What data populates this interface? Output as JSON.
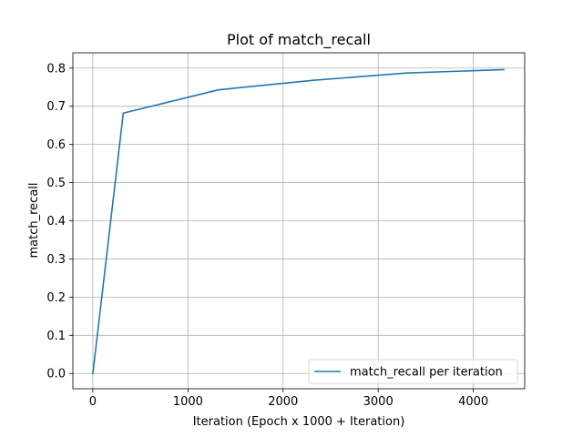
{
  "chart_data": {
    "type": "line",
    "title": "Plot of match_recall",
    "xlabel": "Iteration (Epoch x 1000 + Iteration)",
    "ylabel": "match_recall",
    "xlim": [
      -210,
      4540
    ],
    "ylim": [
      -0.04,
      0.84
    ],
    "x_ticks": [
      0,
      1000,
      2000,
      3000,
      4000
    ],
    "y_ticks": [
      0.0,
      0.1,
      0.2,
      0.3,
      0.4,
      0.5,
      0.6,
      0.7,
      0.8
    ],
    "x_tick_labels": [
      "0",
      "1000",
      "2000",
      "3000",
      "4000"
    ],
    "y_tick_labels": [
      "0.0",
      "0.1",
      "0.2",
      "0.3",
      "0.4",
      "0.5",
      "0.6",
      "0.7",
      "0.8"
    ],
    "grid": true,
    "legend_position": "lower-right",
    "series": [
      {
        "name": "match_recall per iteration",
        "color": "#1f77b4",
        "x": [
          0,
          320,
          1320,
          2320,
          3300,
          4320
        ],
        "y": [
          0.0,
          0.682,
          0.743,
          0.768,
          0.787,
          0.796
        ]
      }
    ]
  }
}
